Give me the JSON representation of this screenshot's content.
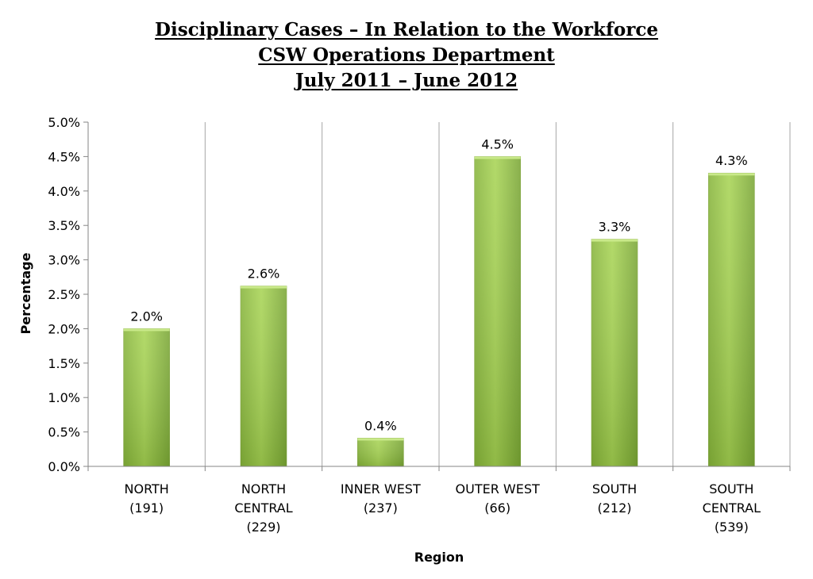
{
  "chart_data": {
    "type": "bar",
    "title_lines": [
      "Disciplinary Cases – In Relation to the Workforce",
      "CSW Operations Department",
      "July 2011 – June 2012"
    ],
    "xlabel": "Region",
    "ylabel": "Percentage",
    "ylim": [
      0,
      5.0
    ],
    "ytick_step": 0.5,
    "ytick_labels": [
      "0.0%",
      "0.5%",
      "1.0%",
      "1.5%",
      "2.0%",
      "2.5%",
      "3.0%",
      "3.5%",
      "4.0%",
      "4.5%",
      "5.0%"
    ],
    "categories": [
      [
        "NORTH",
        "(191)"
      ],
      [
        "NORTH",
        "CENTRAL",
        "(229)"
      ],
      [
        "INNER WEST",
        "(237)"
      ],
      [
        "OUTER WEST",
        "(66)"
      ],
      [
        "SOUTH",
        "(212)"
      ],
      [
        "SOUTH",
        "CENTRAL",
        "(539)"
      ]
    ],
    "values": [
      2.0,
      2.62,
      0.41,
      4.5,
      3.3,
      4.26
    ],
    "data_labels": [
      "2.0%",
      "2.6%",
      "0.4%",
      "4.5%",
      "3.3%",
      "4.3%"
    ],
    "grid": "vertical category separators",
    "legend": "none",
    "colors": {
      "bar_light": "#b3db5c",
      "bar_mid": "#9bc84a",
      "bar_dark": "#74a034",
      "axis": "#868686",
      "grid": "#a6a6a6"
    }
  }
}
